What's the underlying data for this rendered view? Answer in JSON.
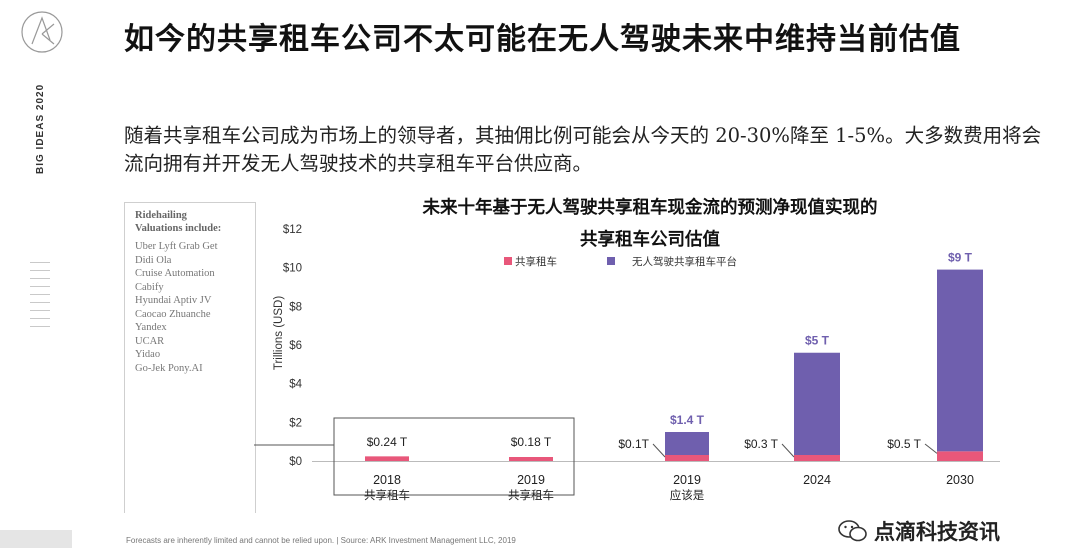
{
  "slide": {
    "title": "如今的共享租车公司不太可能在无人驾驶未来中维持当前估值",
    "side_label": "BIG IDEAS 2020",
    "subtitle": "随着共享租车公司成为市场上的领导者，其抽佣比例可能会从今天的 20-30%降至 1-5%。大多数费用将会流向拥有并开发无人驾驶技术的共享租车平台供应商。",
    "footnote": "Forecasts are inherently limited and cannot be relied upon. | Source: ARK Investment Management LLC, 2019",
    "watermark": "点滴科技资讯"
  },
  "companies": {
    "header_line1": "Ridehailing",
    "header_line2": "Valuations include:",
    "items": [
      "Uber Lyft Grab Get",
      "Didi Ola",
      "Cruise Automation",
      "Cabify",
      "Hyundai Aptiv JV",
      "Caocao Zhuanche",
      "Yandex",
      "UCAR",
      "Yidao",
      "Go-Jek Pony.AI"
    ]
  },
  "chart_data": {
    "type": "bar",
    "title_line1": "未来十年基于无人驾驶共享租车现金流的预测净现值实现的",
    "title_line2": "共享租车公司估值",
    "ylabel": "Trillions (USD)",
    "ylim": [
      0,
      12
    ],
    "yticks": [
      "$0",
      "$2",
      "$4",
      "$6",
      "$8",
      "$10",
      "$12"
    ],
    "categories": [
      {
        "line1": "2018",
        "line2": "共享租车"
      },
      {
        "line1": "2019",
        "line2": "共享租车"
      },
      {
        "line1": "2019",
        "line2": "应该是"
      },
      {
        "line1": "2024",
        "line2": ""
      },
      {
        "line1": "2030",
        "line2": ""
      }
    ],
    "series": [
      {
        "name": "共享租车",
        "color": "#e8577a",
        "values": [
          0.24,
          0.18,
          0.1,
          0.3,
          0.5
        ]
      },
      {
        "name": "无人驾驶共享租车平台",
        "color": "#6f5fae",
        "values": [
          0,
          0,
          1.4,
          5.3,
          9.4
        ]
      }
    ],
    "labels": {
      "ridehailing": [
        "$0.24 T",
        "$0.18 T",
        "$0.1T",
        "$0.3 T",
        "$0.5 T"
      ],
      "total": [
        "",
        "",
        "$1.4 T",
        "$5 T",
        "$9 T"
      ]
    },
    "label_colors": {
      "total": "#6f5fae",
      "value": "#222222"
    }
  }
}
